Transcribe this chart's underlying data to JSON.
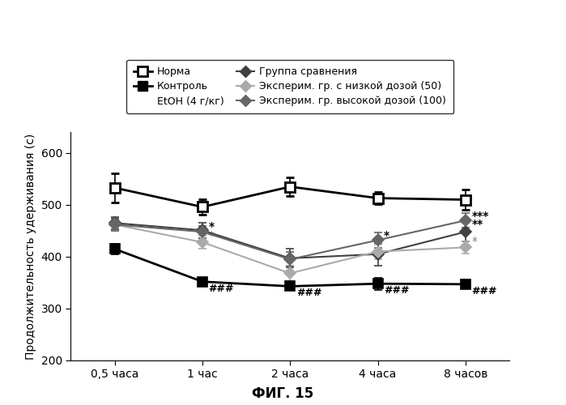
{
  "x_positions": [
    0,
    1,
    2,
    3,
    4
  ],
  "x_labels": [
    "0,5 часа",
    "1 час",
    "2 часа",
    "4 часа",
    "8 часов"
  ],
  "ylabel": "Продолжительность удерживания (с)",
  "xlabel_fig": "ФИГ. 15",
  "ylim": [
    200,
    640
  ],
  "yticks": [
    200,
    300,
    400,
    500,
    600
  ],
  "series": {
    "norma": {
      "label": "Норма",
      "y": [
        533,
        496,
        535,
        513,
        510
      ],
      "yerr": [
        28,
        15,
        18,
        12,
        20
      ],
      "color": "#000000",
      "marker": "s",
      "fillstyle": "none",
      "linewidth": 2.0,
      "markersize": 8
    },
    "control": {
      "label_line1": "Контроль",
      "label_line2": "EtOH (4 г/кг)",
      "y": [
        415,
        352,
        343,
        348,
        347
      ],
      "yerr": [
        10,
        8,
        7,
        12,
        8
      ],
      "color": "#000000",
      "marker": "s",
      "fillstyle": "full",
      "linewidth": 2.0,
      "markersize": 8
    },
    "comparison": {
      "label": "Группа сравнения",
      "y": [
        465,
        451,
        397,
        405,
        448
      ],
      "yerr": [
        12,
        15,
        18,
        22,
        18
      ],
      "color": "#404040",
      "marker": "D",
      "fillstyle": "full",
      "linewidth": 1.5,
      "markersize": 7
    },
    "low_dose": {
      "label": "Эксперим. гр. с низкой дозой (50)",
      "y": [
        462,
        428,
        368,
        410,
        418
      ],
      "yerr": [
        12,
        13,
        15,
        14,
        12
      ],
      "color": "#aaaaaa",
      "marker": "D",
      "fillstyle": "full",
      "linewidth": 1.5,
      "markersize": 7
    },
    "high_dose": {
      "label": "Эксперим. гр. высокой дозой (100)",
      "y": [
        462,
        448,
        395,
        432,
        470
      ],
      "yerr": [
        12,
        12,
        14,
        15,
        14
      ],
      "color": "#666666",
      "marker": "D",
      "fillstyle": "full",
      "linewidth": 1.5,
      "markersize": 7
    }
  },
  "background_color": "#ffffff"
}
